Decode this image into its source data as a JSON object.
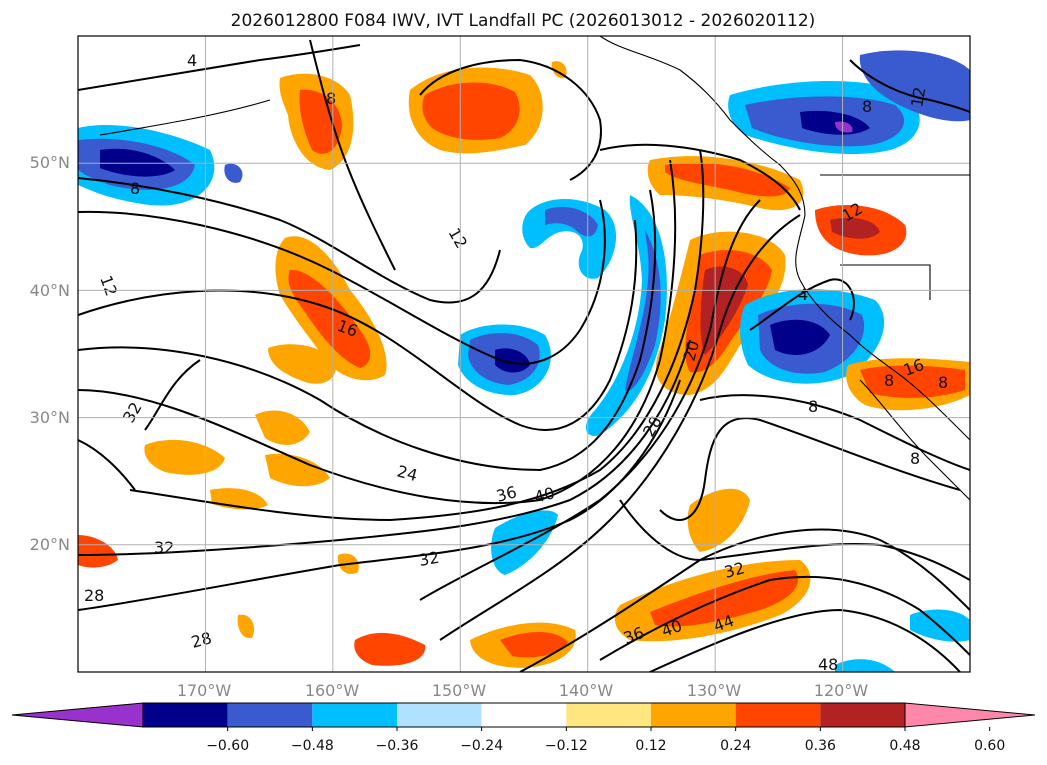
{
  "figure": {
    "title": "2026012800 F084 IWV, IVT Landfall PC (2026013012 - 2026020112)"
  },
  "map": {
    "lon_ticks": [
      "170°W",
      "160°W",
      "150°W",
      "140°W",
      "130°W",
      "120°W"
    ],
    "lat_ticks": [
      "50°N",
      "40°N",
      "30°N",
      "20°N"
    ],
    "lon_range": [
      -180,
      -110
    ],
    "lat_range": [
      10,
      60
    ],
    "grid": true
  },
  "colorbar": {
    "tick_labels": [
      "−0.60",
      "−0.48",
      "−0.36",
      "−0.24",
      "−0.12",
      "0.12",
      "0.24",
      "0.36",
      "0.48",
      "0.60"
    ],
    "colors": [
      "#9932cc",
      "#00008b",
      "#3a5bd0",
      "#00bfff",
      "#b0e2ff",
      "#ffffff",
      "#ffe680",
      "#ffa500",
      "#ff4500",
      "#b22222",
      "#ff88aa"
    ],
    "extend": "both"
  },
  "contour_labels": [
    {
      "text": "4"
    },
    {
      "text": "8"
    },
    {
      "text": "8"
    },
    {
      "text": "12"
    },
    {
      "text": "12"
    },
    {
      "text": "12"
    },
    {
      "text": "16"
    },
    {
      "text": "20"
    },
    {
      "text": "4"
    },
    {
      "text": "8"
    },
    {
      "text": "8"
    },
    {
      "text": "8"
    },
    {
      "text": "28"
    },
    {
      "text": "32"
    },
    {
      "text": "24"
    },
    {
      "text": "36"
    },
    {
      "text": "40"
    },
    {
      "text": "32"
    },
    {
      "text": "32"
    },
    {
      "text": "28"
    },
    {
      "text": "28"
    },
    {
      "text": "32"
    },
    {
      "text": "36"
    },
    {
      "text": "40"
    },
    {
      "text": "44"
    },
    {
      "text": "48"
    },
    {
      "text": "12"
    },
    {
      "text": "16"
    },
    {
      "text": "8"
    },
    {
      "text": "8"
    }
  ]
}
